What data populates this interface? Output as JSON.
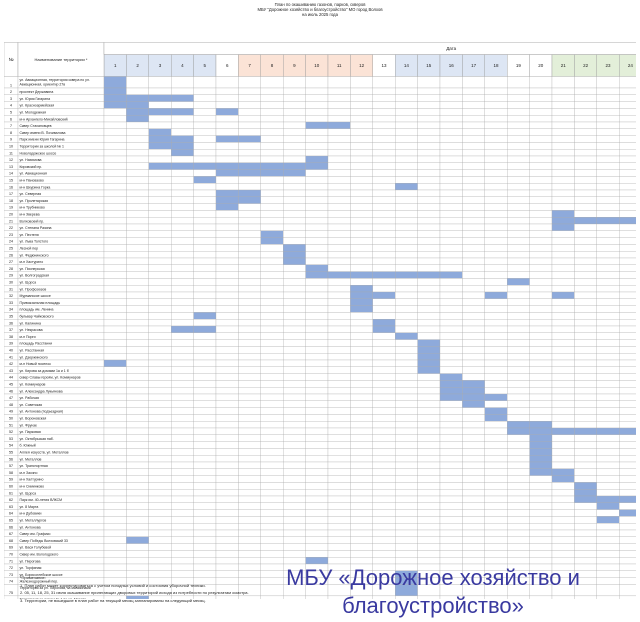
{
  "title": {
    "line1": "План по окашиванию газонов, парков, скверов",
    "line2": "МБУ \"Дорожное хозяйство и благоустройство\" МО город Волхов",
    "line3": "на июль 2025 года"
  },
  "table": {
    "col_no": "№",
    "col_name": "Наименование территории *",
    "col_date": "Дата",
    "days": [
      "1",
      "2",
      "3",
      "4",
      "5",
      "6",
      "7",
      "8",
      "9",
      "10",
      "11",
      "12",
      "13",
      "14",
      "15",
      "16",
      "17",
      "18",
      "19",
      "20",
      "21",
      "22",
      "23",
      "24",
      "25",
      "26",
      "27",
      "28",
      "29",
      "30",
      "31"
    ],
    "day_groups": [
      {
        "days": [
          1,
          2,
          3,
          4,
          5
        ],
        "color": "#dde6f4"
      },
      {
        "days": [
          6
        ],
        "color": "#ffffff"
      },
      {
        "days": [
          7,
          8,
          9,
          10,
          11,
          12
        ],
        "color": "#fbe3d6"
      },
      {
        "days": [
          13
        ],
        "color": "#ffffff"
      },
      {
        "days": [
          14,
          15,
          16,
          17,
          18
        ],
        "color": "#dde6f4"
      },
      {
        "days": [
          19
        ],
        "color": "#ffffff"
      },
      {
        "days": [
          20
        ],
        "color": "#ffffff"
      },
      {
        "days": [
          21,
          22,
          23,
          24,
          25
        ],
        "color": "#e3efd9"
      },
      {
        "days": [
          26,
          27,
          28,
          29
        ],
        "color": "#9f9f9f"
      },
      {
        "days": [
          30,
          31
        ],
        "color": "#dde6f4"
      }
    ],
    "fill_color": "#8eaadb",
    "rows": [
      {
        "n": "1",
        "name": "ул. Авиационная, территория сквера по ул. Авиационная, ориентир 27в",
        "days": [
          1
        ],
        "tall": true
      },
      {
        "n": "2",
        "name": "проспект Державина",
        "days": [
          1
        ]
      },
      {
        "n": "3",
        "name": "ул. Юрия Гагарина",
        "days": [
          1,
          2,
          3,
          4
        ]
      },
      {
        "n": "4",
        "name": "ул. Красноармейская",
        "days": [
          1,
          2
        ]
      },
      {
        "n": "5",
        "name": "ул. Молодежная",
        "days": [
          2,
          3,
          4,
          6
        ]
      },
      {
        "n": "6",
        "name": "м-н Архангело-Михайловский",
        "days": [
          2
        ]
      },
      {
        "n": "7",
        "name": "Сквер Стахановцев",
        "days": [
          10,
          11
        ]
      },
      {
        "n": "8",
        "name": "Сквер имени В. Почивалова",
        "days": [
          3
        ]
      },
      {
        "n": "9",
        "name": "Парк имени Юрия Гагарина",
        "days": [
          3,
          4,
          6,
          7
        ]
      },
      {
        "n": "10",
        "name": "Территории за школой № 1",
        "days": [
          3,
          4
        ]
      },
      {
        "n": "11",
        "name": "Новоладожское шоссе",
        "days": [
          4
        ]
      },
      {
        "n": "12",
        "name": "ул. Нахимова",
        "days": [
          10
        ]
      },
      {
        "n": "13",
        "name": "Кировский пр.",
        "days": [
          3,
          4,
          5,
          6,
          7,
          8,
          9,
          10
        ]
      },
      {
        "n": "14",
        "name": "ул. Авиационная",
        "days": [
          6,
          7,
          8,
          9
        ]
      },
      {
        "n": "15",
        "name": "м-н Пановаово",
        "days": [
          5
        ]
      },
      {
        "n": "16",
        "name": "м-н Шкурина Горка",
        "days": [
          14
        ]
      },
      {
        "n": "17",
        "name": "ул. Северная",
        "days": [
          6,
          7
        ]
      },
      {
        "n": "18",
        "name": "ул. Пролетарская",
        "days": [
          6,
          7
        ]
      },
      {
        "n": "19",
        "name": "м-н Трубниково",
        "days": [
          6
        ]
      },
      {
        "n": "20",
        "name": "м-н Зверева",
        "days": [
          21
        ]
      },
      {
        "n": "21",
        "name": "Волховский пр.",
        "days": [
          21,
          22,
          23,
          24,
          25
        ]
      },
      {
        "n": "22",
        "name": "ул. Степана Разина",
        "days": [
          21
        ]
      },
      {
        "n": "23",
        "name": "ул. Пестеля",
        "days": [
          8
        ]
      },
      {
        "n": "24",
        "name": "ул. Льва Толстого",
        "days": [
          8
        ]
      },
      {
        "n": "25",
        "name": "Лесной пер",
        "days": [
          9
        ]
      },
      {
        "n": "26",
        "name": "ул. Федюнинского",
        "days": [
          9
        ]
      },
      {
        "n": "27",
        "name": "м-н Хастурино",
        "days": [
          9
        ]
      },
      {
        "n": "28",
        "name": "ул. Пионерская",
        "days": [
          10
        ]
      },
      {
        "n": "29",
        "name": "ул. Волгоградская",
        "days": [
          10,
          11,
          12,
          13,
          14,
          15,
          16
        ]
      },
      {
        "n": "30",
        "name": "ул. Щорса",
        "days": [
          19
        ]
      },
      {
        "n": "31",
        "name": "ул. Профсоюзов",
        "days": [
          12
        ]
      },
      {
        "n": "32",
        "name": "Мурманское шоссе",
        "days": [
          12,
          13,
          18,
          21
        ]
      },
      {
        "n": "33",
        "name": "Привокзальная площадь",
        "days": [
          12
        ]
      },
      {
        "n": "34",
        "name": "площадь им. Ленина",
        "days": [
          12
        ]
      },
      {
        "n": "35",
        "name": "бульвар Чайковского",
        "days": [
          5
        ]
      },
      {
        "n": "36",
        "name": "ул. Калинина",
        "days": [
          13
        ]
      },
      {
        "n": "37",
        "name": "ул. Некрасова",
        "days": [
          4,
          5,
          13
        ]
      },
      {
        "n": "38",
        "name": "м-н Порги",
        "days": [
          14
        ]
      },
      {
        "n": "39",
        "name": "площадь Расстанни",
        "days": [
          15
        ]
      },
      {
        "n": "40",
        "name": "ул. Расстанная",
        "days": [
          15
        ]
      },
      {
        "n": "41",
        "name": "ул. Дзержинского",
        "days": [
          15,
          31
        ]
      },
      {
        "n": "42",
        "name": "м-н Новый поселок",
        "days": [
          1,
          15
        ]
      },
      {
        "n": "43",
        "name": "ул. Кирова за домами 1а и 1 б",
        "days": [
          15
        ]
      },
      {
        "n": "44",
        "name": "сквер Славы героям, ул. Коммунаров",
        "days": [
          16
        ]
      },
      {
        "n": "45",
        "name": "ул. Коммунаров",
        "days": [
          16,
          17,
          31
        ]
      },
      {
        "n": "46",
        "name": "ул. Александра Лукьянова",
        "days": [
          16,
          17
        ]
      },
      {
        "n": "47",
        "name": "ул. Рабочая",
        "days": [
          16,
          17,
          18,
          31
        ]
      },
      {
        "n": "48",
        "name": "ул. Советская",
        "days": [
          17,
          30
        ]
      },
      {
        "n": "49",
        "name": "ул. Антонова (подъездная)",
        "days": [
          18
        ]
      },
      {
        "n": "50",
        "name": "ул. Вороновская",
        "days": [
          18
        ]
      },
      {
        "n": "51",
        "name": "ул. Фрунзе",
        "days": [
          19,
          20
        ]
      },
      {
        "n": "52",
        "name": "ул. Парковая",
        "days": [
          19,
          20,
          21,
          22,
          23,
          24,
          25,
          26,
          27,
          28,
          29,
          30,
          31
        ]
      },
      {
        "n": "53",
        "name": "ул. Октябрьская наб.",
        "days": [
          20
        ]
      },
      {
        "n": "54",
        "name": "б. Южный",
        "days": [
          20
        ]
      },
      {
        "n": "55",
        "name": "Аллея искусств, ул. Металлов",
        "days": [
          20
        ]
      },
      {
        "n": "56",
        "name": "ул. Металлов",
        "days": [
          20
        ]
      },
      {
        "n": "57",
        "name": "ул. Транспортная",
        "days": [
          20
        ]
      },
      {
        "n": "58",
        "name": "м-н Заозно",
        "days": [
          20,
          21
        ]
      },
      {
        "n": "59",
        "name": "м-н Халтурино",
        "days": [
          21
        ]
      },
      {
        "n": "60",
        "name": "м-н Симинково",
        "days": [
          22
        ]
      },
      {
        "n": "61",
        "name": "ул. Щорса",
        "days": [
          22
        ]
      },
      {
        "n": "62",
        "name": "Парк им. 40-летия ВЛКСМ",
        "days": [
          22,
          23,
          24,
          25,
          26,
          27,
          28,
          29,
          30,
          31
        ]
      },
      {
        "n": "63",
        "name": "ул. 8 Марта",
        "days": [
          23
        ]
      },
      {
        "n": "64",
        "name": "м-н Дубовики",
        "days": [
          24
        ]
      },
      {
        "n": "65",
        "name": "ул. Металлургов",
        "days": [
          23
        ]
      },
      {
        "n": "66",
        "name": "ул. Антонова",
        "days": [
          25
        ]
      },
      {
        "n": "67",
        "name": "Сквер им. Графико",
        "days": [
          26
        ]
      },
      {
        "n": "68",
        "name": "Сквер Победы Волховский 33",
        "days": [
          2,
          28
        ]
      },
      {
        "n": "69",
        "name": "ул. Васи Голубевой",
        "days": [
          31
        ]
      },
      {
        "n": "70",
        "name": "Сквер им. Вологодского",
        "days": [
          30
        ]
      },
      {
        "n": "71",
        "name": "ул. Пирогова",
        "days": [
          10
        ]
      },
      {
        "n": "72",
        "name": "ул. Торфяная",
        "days": [
          30
        ]
      },
      {
        "n": "73",
        "name": "ул. Борисоглебское шоссе",
        "days": [
          14
        ]
      },
      {
        "n": "74",
        "name": "Железнодорожный пер.",
        "days": [
          14
        ]
      },
      {
        "n": "75",
        "name": "Территория за ул. Пирогова, за магазинами",
        "days": [
          14
        ],
        "tall": true
      },
      {
        "n": "76",
        "name": "Территория за домом № 1 по ул. Марата",
        "days": [
          2
        ],
        "tall": true
      },
      {
        "n": "77",
        "name": "Сквер у ДВОТ Кировский пр. д. 34",
        "days": [
          2
        ]
      }
    ]
  },
  "notes": [
    "*Примечание:",
    "1. План работ может корректироваться с учетом погодных условий и  состояния уборочной техники.",
    "2. 05, 11, 18, 25, 31 июля  окашивание прилегающих дворовых территорий исходя из потребности по результатам осмотра.",
    "3. Территории, не вошедшие в план работ на текущий месяц запланированы на следующий месяц."
  ],
  "caption": "МБУ «Дорожное хозяйство и благоустройство»"
}
